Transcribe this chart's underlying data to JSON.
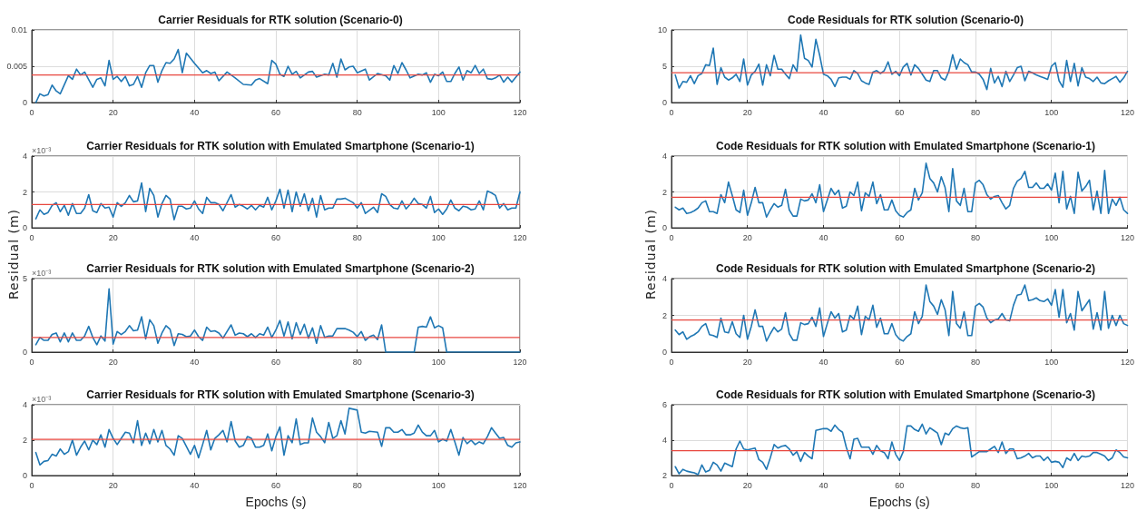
{
  "chart_data": [
    {
      "type": "line",
      "title": "Carrier Residuals for RTK solution (Scenario-0)",
      "xlim": [
        0,
        120
      ],
      "xticks": [
        0,
        20,
        40,
        60,
        80,
        100,
        120
      ],
      "ylim": [
        0,
        0.01
      ],
      "yticks": [
        0,
        0.005,
        0.01
      ],
      "grid": true,
      "marker": "none",
      "line_style": "solid",
      "ref_lines": [
        {
          "axis": "y",
          "value": 0.0038,
          "color": "#e8473f"
        }
      ],
      "series": [
        {
          "color": "#1f77b4",
          "x": [
            1,
            2,
            3,
            4,
            5,
            6,
            7,
            9,
            10,
            11,
            12,
            13,
            15,
            16,
            17,
            18,
            19,
            20,
            21,
            22,
            23,
            24,
            25,
            26,
            27,
            28,
            29,
            30,
            31,
            32,
            33,
            34,
            35,
            36,
            37,
            38,
            40,
            42,
            43,
            44,
            45,
            46,
            48,
            50,
            52,
            54,
            55,
            56,
            58,
            59,
            60,
            61,
            62,
            63,
            64,
            65,
            66,
            68,
            69,
            70,
            72,
            73,
            74,
            75,
            76,
            77,
            78,
            79,
            80,
            82,
            83,
            85,
            87,
            88,
            89,
            90,
            91,
            92,
            93,
            95,
            96,
            97,
            98,
            99,
            100,
            101,
            102,
            103,
            104,
            105,
            106,
            107,
            108,
            109,
            110,
            111,
            112,
            113,
            114,
            115,
            116,
            117,
            118,
            119,
            120
          ],
          "values": [
            0,
            0.0012,
            0.0009,
            0.0011,
            0.0024,
            0.0016,
            0.0012,
            0.0037,
            0.0032,
            0.0046,
            0.0038,
            0.0042,
            0.0021,
            0.0032,
            0.0034,
            0.0023,
            0.0058,
            0.0032,
            0.0036,
            0.0029,
            0.0036,
            0.0023,
            0.0025,
            0.0036,
            0.0021,
            0.0041,
            0.0051,
            0.0051,
            0.0028,
            0.0044,
            0.0055,
            0.0054,
            0.006,
            0.0073,
            0.0041,
            0.0068,
            0.0054,
            0.0041,
            0.0044,
            0.004,
            0.0042,
            0.003,
            0.0042,
            0.0034,
            0.0025,
            0.0024,
            0.0031,
            0.0033,
            0.0026,
            0.0058,
            0.0053,
            0.0039,
            0.0036,
            0.005,
            0.0039,
            0.0043,
            0.0034,
            0.0042,
            0.0043,
            0.0035,
            0.0039,
            0.0038,
            0.0054,
            0.0035,
            0.006,
            0.0045,
            0.0049,
            0.005,
            0.0041,
            0.0046,
            0.0031,
            0.004,
            0.0037,
            0.0031,
            0.0051,
            0.004,
            0.0055,
            0.0045,
            0.0034,
            0.0039,
            0.0038,
            0.0041,
            0.0028,
            0.0039,
            0.0037,
            0.0042,
            0.0029,
            0.0029,
            0.004,
            0.0049,
            0.0031,
            0.0044,
            0.0041,
            0.0051,
            0.004,
            0.0046,
            0.0033,
            0.0032,
            0.0034,
            0.0038,
            0.0028,
            0.0035,
            0.0028,
            0.0035,
            0.0042
          ]
        }
      ]
    },
    {
      "type": "line",
      "title": "Carrier Residuals for RTK solution with Emulated Smartphone (Scenario-1)",
      "ylabel": "Residual (m)",
      "annotations": [
        "×10⁻³"
      ],
      "xlim": [
        0,
        120
      ],
      "xticks": [
        0,
        20,
        40,
        60,
        80,
        100,
        120
      ],
      "ylim": [
        0,
        4
      ],
      "yticks": [
        0,
        2,
        4
      ],
      "grid": true,
      "marker": "none",
      "line_style": "solid",
      "ref_lines": [
        {
          "axis": "y",
          "value": 1.3,
          "color": "#e8473f"
        }
      ],
      "series": [
        {
          "color": "#1f77b4",
          "x": [
            1,
            2,
            3,
            4,
            5,
            6,
            7,
            8,
            9,
            10,
            11,
            12,
            13,
            14,
            15,
            16,
            17,
            18,
            19,
            20,
            21,
            22,
            23,
            24,
            25,
            26,
            27,
            28,
            29,
            30,
            31,
            32,
            33,
            34,
            35,
            36,
            37,
            38,
            39,
            40,
            41,
            42,
            43,
            44,
            45,
            46,
            47,
            49,
            50,
            51,
            52,
            53,
            54,
            55,
            56,
            57,
            58,
            59,
            60,
            61,
            62,
            63,
            64,
            65,
            66,
            67,
            68,
            69,
            70,
            71,
            72,
            73,
            74,
            75,
            76,
            77,
            79,
            80,
            81,
            82,
            84,
            85,
            86,
            87,
            88,
            89,
            90,
            91,
            92,
            93,
            94,
            95,
            96,
            97,
            98,
            99,
            100,
            101,
            102,
            103,
            104,
            105,
            106,
            107,
            108,
            109,
            110,
            111,
            112,
            113,
            114,
            115,
            116,
            117,
            118,
            119,
            120
          ],
          "values": [
            0.5,
            1.0,
            0.75,
            0.85,
            1.25,
            1.4,
            0.9,
            1.25,
            0.7,
            1.35,
            0.8,
            0.8,
            1.1,
            1.85,
            0.95,
            0.85,
            1.35,
            1.1,
            1.15,
            0.6,
            1.4,
            1.2,
            1.4,
            1.8,
            1.45,
            1.5,
            2.5,
            0.9,
            2.2,
            1.8,
            0.6,
            1.35,
            1.8,
            1.6,
            0.45,
            1.2,
            1.2,
            1.05,
            1.1,
            1.5,
            1.05,
            0.8,
            1.7,
            1.4,
            1.4,
            1.3,
            0.95,
            1.85,
            1.15,
            1.3,
            1.2,
            1.05,
            1.25,
            1.0,
            1.25,
            1.15,
            1.7,
            1.0,
            1.5,
            2.15,
            1.1,
            2.1,
            0.9,
            2.0,
            1.2,
            1.9,
            0.95,
            1.65,
            0.6,
            1.8,
            1.0,
            1.1,
            1.1,
            1.6,
            1.6,
            1.65,
            1.4,
            1.1,
            1.4,
            0.8,
            1.15,
            0.85,
            1.9,
            1.75,
            1.3,
            1.1,
            1.05,
            1.5,
            1.05,
            1.3,
            1.65,
            1.35,
            1.3,
            1.1,
            1.75,
            0.85,
            1.05,
            0.75,
            1.05,
            1.55,
            1.1,
            0.95,
            1.2,
            1.15,
            1.0,
            1.05,
            1.5,
            1.0,
            2.05,
            1.95,
            1.8,
            1.1,
            1.35,
            1.0,
            1.1,
            1.1,
            2.0
          ]
        }
      ]
    },
    {
      "type": "line",
      "title": "Carrier Residuals for RTK solution with Emulated Smartphone (Scenario-2)",
      "annotations": [
        "×10⁻³"
      ],
      "xlim": [
        0,
        120
      ],
      "xticks": [
        0,
        20,
        40,
        60,
        80,
        100,
        120
      ],
      "ylim": [
        0,
        5
      ],
      "yticks": [
        0,
        5
      ],
      "grid": true,
      "marker": "none",
      "line_style": "solid",
      "ref_lines": [
        {
          "axis": "y",
          "value": 1.0,
          "color": "#e8473f"
        }
      ],
      "series": [
        {
          "color": "#1f77b4",
          "x": [
            1,
            2,
            3,
            4,
            5,
            6,
            7,
            8,
            9,
            10,
            11,
            12,
            13,
            14,
            15,
            16,
            17,
            18,
            19,
            20,
            21,
            22,
            23,
            24,
            25,
            26,
            27,
            28,
            29,
            30,
            31,
            32,
            33,
            34,
            35,
            36,
            37,
            38,
            39,
            40,
            41,
            42,
            43,
            44,
            45,
            46,
            47,
            49,
            50,
            51,
            52,
            53,
            54,
            55,
            56,
            57,
            58,
            59,
            60,
            61,
            62,
            63,
            64,
            65,
            66,
            67,
            68,
            69,
            70,
            71,
            72,
            73,
            74,
            75,
            76,
            77,
            78,
            79,
            80,
            81,
            82,
            83,
            84,
            85,
            86,
            87,
            94,
            95,
            96,
            97,
            98,
            99,
            100,
            101,
            102,
            120
          ],
          "values": [
            0.5,
            1.0,
            0.8,
            0.8,
            1.2,
            1.3,
            0.7,
            1.3,
            0.7,
            1.3,
            0.8,
            0.8,
            1.1,
            1.75,
            1.0,
            0.5,
            1.1,
            0.75,
            4.3,
            0.55,
            1.4,
            1.2,
            1.4,
            1.8,
            1.45,
            1.5,
            2.4,
            0.9,
            2.2,
            1.8,
            0.6,
            1.3,
            1.8,
            1.55,
            0.45,
            1.25,
            1.2,
            1.05,
            1.1,
            1.5,
            1.05,
            0.8,
            1.7,
            1.4,
            1.45,
            1.3,
            0.95,
            1.85,
            1.15,
            1.3,
            1.25,
            1.05,
            1.25,
            1.0,
            1.25,
            1.15,
            1.7,
            1.0,
            1.5,
            2.15,
            1.1,
            2.05,
            0.9,
            2.0,
            1.2,
            1.9,
            0.95,
            1.65,
            0.6,
            1.8,
            1.0,
            1.1,
            1.1,
            1.6,
            1.6,
            1.6,
            1.5,
            1.35,
            1.05,
            1.4,
            0.8,
            1.05,
            1.15,
            0.85,
            1.85,
            0,
            0,
            1.7,
            1.75,
            1.7,
            2.4,
            1.65,
            1.8,
            1.65,
            0,
            0
          ]
        }
      ]
    },
    {
      "type": "line",
      "title": "Carrier Residuals for RTK solution with Emulated Smartphone (Scenario-3)",
      "xlabel": "Epochs (s)",
      "annotations": [
        "×10⁻³"
      ],
      "xlim": [
        0,
        120
      ],
      "xticks": [
        0,
        20,
        40,
        60,
        80,
        100,
        120
      ],
      "ylim": [
        0,
        4
      ],
      "yticks": [
        0,
        2,
        4
      ],
      "grid": true,
      "marker": "none",
      "line_style": "solid",
      "ref_lines": [
        {
          "axis": "y",
          "value": 2.05,
          "color": "#e8473f"
        }
      ],
      "series": [
        {
          "color": "#1f77b4",
          "x": [
            1,
            2,
            3,
            4,
            5,
            6,
            7,
            8,
            9,
            10,
            11,
            12,
            13,
            14,
            15,
            16,
            17,
            18,
            19,
            20,
            21,
            22,
            23,
            24,
            25,
            26,
            27,
            28,
            29,
            30,
            31,
            32,
            33,
            34,
            35,
            36,
            37,
            38,
            39,
            40,
            41,
            42,
            43,
            44,
            45,
            46,
            47,
            48,
            49,
            50,
            51,
            52,
            53,
            54,
            55,
            56,
            57,
            58,
            59,
            60,
            61,
            62,
            63,
            64,
            65,
            66,
            67,
            68,
            69,
            70,
            71,
            72,
            73,
            74,
            75,
            76,
            77,
            78,
            79,
            80,
            81,
            82,
            83,
            85,
            86,
            87,
            88,
            89,
            90,
            91,
            92,
            93,
            94,
            95,
            96,
            97,
            98,
            99,
            100,
            101,
            102,
            103,
            104,
            105,
            106,
            107,
            108,
            109,
            110,
            111,
            112,
            113,
            114,
            115,
            116,
            117,
            118,
            119,
            120
          ],
          "values": [
            1.3,
            0.6,
            0.8,
            0.85,
            1.2,
            1.1,
            1.5,
            1.2,
            1.35,
            2.0,
            1.15,
            1.6,
            1.95,
            1.45,
            2.0,
            1.75,
            2.3,
            1.6,
            2.6,
            2.1,
            1.75,
            2.1,
            2.45,
            2.4,
            1.85,
            3.1,
            1.7,
            2.4,
            1.8,
            2.6,
            1.9,
            2.55,
            1.7,
            1.5,
            1.15,
            2.25,
            2.1,
            1.65,
            1.2,
            1.7,
            1.0,
            1.75,
            2.55,
            1.45,
            2.1,
            2.3,
            2.55,
            1.9,
            3.05,
            1.95,
            1.6,
            1.7,
            2.2,
            2.1,
            1.6,
            1.6,
            1.7,
            2.35,
            1.4,
            2.2,
            2.75,
            1.15,
            2.25,
            1.85,
            3.2,
            1.75,
            1.85,
            1.85,
            3.25,
            2.45,
            2.2,
            1.85,
            3.0,
            2.1,
            2.25,
            3.1,
            2.35,
            3.8,
            3.75,
            3.7,
            2.45,
            2.4,
            2.5,
            2.45,
            1.65,
            2.7,
            2.7,
            2.45,
            2.45,
            2.6,
            2.3,
            2.3,
            2.4,
            2.85,
            2.45,
            2.25,
            2.25,
            2.55,
            1.9,
            2.05,
            1.95,
            2.6,
            1.9,
            1.15,
            2.15,
            1.8,
            2.0,
            1.75,
            1.9,
            1.8,
            2.2,
            2.7,
            2.4,
            2.1,
            2.15,
            1.7,
            1.6,
            1.85,
            1.9
          ]
        }
      ]
    },
    {
      "type": "line",
      "title": "Code Residuals for RTK solution (Scenario-0)",
      "xlim": [
        0,
        120
      ],
      "xticks": [
        0,
        20,
        40,
        60,
        80,
        100,
        120
      ],
      "ylim": [
        0,
        10
      ],
      "yticks": [
        0,
        5,
        10
      ],
      "grid": true,
      "marker": "none",
      "line_style": "solid",
      "ref_lines": [
        {
          "axis": "y",
          "value": 4.1,
          "color": "#e8473f"
        }
      ],
      "series": [
        {
          "color": "#1f77b4",
          "x": [
            1,
            2,
            3,
            4,
            5,
            6,
            7,
            8,
            9,
            10,
            11,
            12,
            13,
            14,
            15,
            16,
            17,
            18,
            19,
            20,
            21,
            22,
            23,
            24,
            25,
            26,
            27,
            28,
            29,
            30,
            31,
            32,
            33,
            34,
            35,
            36,
            37,
            38,
            39,
            40,
            41,
            42,
            43,
            44,
            45,
            46,
            47,
            48,
            49,
            50,
            51,
            52,
            53,
            54,
            55,
            56,
            57,
            58,
            59,
            60,
            61,
            62,
            63,
            64,
            65,
            66,
            67,
            68,
            69,
            70,
            71,
            72,
            73,
            74,
            75,
            76,
            77,
            78,
            79,
            80,
            81,
            82,
            83,
            84,
            85,
            86,
            87,
            88,
            89,
            90,
            91,
            92,
            93,
            94,
            95,
            96,
            97,
            98,
            99,
            100,
            101,
            102,
            103,
            104,
            105,
            106,
            107,
            108,
            109,
            110,
            111,
            112,
            113,
            114,
            115,
            116,
            117,
            118,
            119,
            120
          ],
          "values": [
            3.8,
            2.0,
            2.9,
            2.8,
            3.7,
            2.6,
            3.7,
            4.0,
            5.2,
            5.1,
            7.5,
            2.5,
            4.8,
            3.5,
            3.1,
            3.4,
            3.9,
            2.9,
            6.0,
            2.4,
            3.8,
            4.3,
            5.3,
            2.4,
            5.2,
            3.7,
            6.5,
            4.6,
            4.6,
            3.9,
            3.3,
            5.2,
            4.3,
            9.3,
            6.1,
            5.8,
            4.9,
            8.7,
            6.5,
            3.9,
            3.7,
            3.2,
            2.2,
            3.4,
            3.5,
            3.5,
            3.2,
            4.4,
            4.0,
            3.0,
            2.7,
            2.5,
            4.2,
            4.4,
            4.0,
            4.4,
            5.6,
            3.9,
            4.3,
            3.7,
            4.9,
            5.4,
            3.8,
            5.2,
            4.7,
            3.9,
            3.1,
            2.9,
            4.4,
            4.4,
            3.4,
            3.1,
            4.3,
            6.6,
            4.6,
            6.0,
            5.5,
            5.2,
            4.2,
            4.2,
            3.9,
            3.2,
            1.8,
            4.7,
            2.7,
            3.6,
            2.2,
            4.3,
            2.9,
            3.8,
            4.8,
            5.0,
            3.0,
            4.3,
            4.1,
            3.8,
            3.6,
            3.4,
            3.2,
            5.0,
            5.5,
            3.0,
            2.1,
            5.8,
            2.9,
            5.4,
            2.3,
            4.8,
            3.5,
            3.3,
            2.9,
            3.5,
            2.7,
            2.6,
            3.0,
            3.3,
            3.6,
            2.8,
            3.4,
            4.3
          ]
        }
      ]
    },
    {
      "type": "line",
      "title": "Code Residuals for RTK solution with Emulated Smartphone (Scenario-1)",
      "ylabel": "Residual (m)",
      "xlim": [
        0,
        120
      ],
      "xticks": [
        0,
        20,
        40,
        60,
        80,
        100,
        120
      ],
      "ylim": [
        0,
        4
      ],
      "yticks": [
        0,
        2,
        4
      ],
      "grid": true,
      "marker": "none",
      "line_style": "solid",
      "ref_lines": [
        {
          "axis": "y",
          "value": 1.7,
          "color": "#e8473f"
        }
      ],
      "series": [
        {
          "color": "#1f77b4",
          "x": [
            1,
            2,
            3,
            4,
            5,
            6,
            7,
            8,
            9,
            10,
            11,
            12,
            13,
            14,
            15,
            16,
            17,
            18,
            19,
            20,
            21,
            22,
            23,
            24,
            25,
            26,
            27,
            28,
            29,
            30,
            31,
            32,
            33,
            34,
            35,
            36,
            37,
            38,
            39,
            40,
            41,
            42,
            43,
            44,
            45,
            46,
            47,
            48,
            49,
            50,
            51,
            52,
            53,
            54,
            55,
            56,
            57,
            58,
            59,
            60,
            61,
            62,
            63,
            64,
            65,
            66,
            67,
            68,
            69,
            70,
            71,
            72,
            73,
            74,
            75,
            76,
            77,
            78,
            79,
            80,
            81,
            82,
            83,
            84,
            85,
            86,
            87,
            88,
            89,
            90,
            91,
            92,
            93,
            94,
            95,
            96,
            97,
            98,
            99,
            100,
            101,
            102,
            103,
            104,
            105,
            106,
            107,
            108,
            109,
            110,
            111,
            112,
            113,
            114,
            115,
            116,
            117,
            118,
            119,
            120
          ],
          "values": [
            1.15,
            1.0,
            1.1,
            0.8,
            0.85,
            0.95,
            1.1,
            1.4,
            1.5,
            0.9,
            0.9,
            0.8,
            1.85,
            1.4,
            2.55,
            1.8,
            1.0,
            0.85,
            2.1,
            0.7,
            1.4,
            2.25,
            1.4,
            1.4,
            0.6,
            1.0,
            1.35,
            1.15,
            1.25,
            2.15,
            1.0,
            0.65,
            0.65,
            1.6,
            1.5,
            1.55,
            1.9,
            1.4,
            2.4,
            0.9,
            1.55,
            2.2,
            1.85,
            2.1,
            1.1,
            1.2,
            2.0,
            1.8,
            2.55,
            0.95,
            1.95,
            1.75,
            2.55,
            1.35,
            1.85,
            1.0,
            1.0,
            1.55,
            0.95,
            0.7,
            0.6,
            0.85,
            1.0,
            2.2,
            1.55,
            1.95,
            3.6,
            2.75,
            2.5,
            2.0,
            2.85,
            2.25,
            0.9,
            3.3,
            1.5,
            1.25,
            2.2,
            0.9,
            0.9,
            2.5,
            2.65,
            2.4,
            1.85,
            1.6,
            1.75,
            1.8,
            1.4,
            1.05,
            1.25,
            2.2,
            2.6,
            2.75,
            3.15,
            2.25,
            2.25,
            2.5,
            2.2,
            2.2,
            2.45,
            2.1,
            3.05,
            1.4,
            3.15,
            1.05,
            1.75,
            0.8,
            3.1,
            2.05,
            2.3,
            2.65,
            1.0,
            2.05,
            0.8,
            3.2,
            0.8,
            1.6,
            1.25,
            1.7,
            1.0,
            0.8
          ]
        }
      ]
    },
    {
      "type": "line",
      "title": "Code Residuals for RTK solution with Emulated Smartphone (Scenario-2)",
      "xlim": [
        0,
        120
      ],
      "xticks": [
        0,
        20,
        40,
        60,
        80,
        100,
        120
      ],
      "ylim": [
        0,
        4
      ],
      "yticks": [
        0,
        2,
        4
      ],
      "grid": true,
      "marker": "none",
      "line_style": "solid",
      "ref_lines": [
        {
          "axis": "y",
          "value": 1.75,
          "color": "#e8473f"
        }
      ],
      "series": [
        {
          "color": "#1f77b4",
          "x": [
            1,
            2,
            3,
            4,
            5,
            6,
            7,
            8,
            9,
            10,
            11,
            12,
            13,
            14,
            15,
            16,
            17,
            18,
            19,
            20,
            21,
            22,
            23,
            24,
            25,
            26,
            27,
            28,
            29,
            30,
            31,
            32,
            33,
            34,
            35,
            36,
            37,
            38,
            39,
            40,
            41,
            42,
            43,
            44,
            45,
            46,
            47,
            48,
            49,
            50,
            51,
            52,
            53,
            54,
            55,
            56,
            57,
            58,
            59,
            60,
            61,
            62,
            63,
            64,
            65,
            66,
            67,
            68,
            69,
            70,
            71,
            72,
            73,
            74,
            75,
            76,
            77,
            78,
            79,
            80,
            81,
            82,
            83,
            84,
            85,
            86,
            87,
            88,
            89,
            90,
            91,
            92,
            93,
            94,
            95,
            96,
            97,
            98,
            99,
            100,
            101,
            102,
            103,
            104,
            105,
            106,
            107,
            108,
            110,
            111,
            112,
            113,
            114,
            115,
            116,
            117,
            118,
            119,
            120
          ],
          "values": [
            1.2,
            0.95,
            1.1,
            0.7,
            0.85,
            0.95,
            1.1,
            1.4,
            1.55,
            0.95,
            0.9,
            0.8,
            1.85,
            1.1,
            1.05,
            1.65,
            1.0,
            0.8,
            2.0,
            0.7,
            1.4,
            2.3,
            1.4,
            1.4,
            0.6,
            1.0,
            1.35,
            1.1,
            1.25,
            2.15,
            1.0,
            0.65,
            0.65,
            1.6,
            1.5,
            1.55,
            1.9,
            1.4,
            2.4,
            0.85,
            1.55,
            2.2,
            1.85,
            2.1,
            1.1,
            1.2,
            2.0,
            1.8,
            2.5,
            0.95,
            1.95,
            1.75,
            2.55,
            1.35,
            1.85,
            1.0,
            1.0,
            1.55,
            0.95,
            0.7,
            0.6,
            0.85,
            1.0,
            2.2,
            1.55,
            1.95,
            3.65,
            2.75,
            2.5,
            2.05,
            2.85,
            2.3,
            0.9,
            3.3,
            1.55,
            1.3,
            2.2,
            0.9,
            0.9,
            2.5,
            2.65,
            2.45,
            1.85,
            1.6,
            1.75,
            1.8,
            2.1,
            1.75,
            1.7,
            2.55,
            3.1,
            3.15,
            3.65,
            2.8,
            2.85,
            2.95,
            2.8,
            2.75,
            2.9,
            2.55,
            3.4,
            1.9,
            3.4,
            1.6,
            2.1,
            1.2,
            3.3,
            2.25,
            2.85,
            1.25,
            2.15,
            1.2,
            3.3,
            1.3,
            2.0,
            1.45,
            2.0,
            1.55,
            1.45
          ]
        }
      ]
    },
    {
      "type": "line",
      "title": "Code Residuals for RTK solution with Emulated Smartphone (Scenario-3)",
      "xlabel": "Epochs (s)",
      "xlim": [
        0,
        120
      ],
      "xticks": [
        0,
        20,
        40,
        60,
        80,
        100,
        120
      ],
      "ylim": [
        2,
        6
      ],
      "yticks": [
        2,
        4,
        6
      ],
      "grid": true,
      "marker": "none",
      "line_style": "solid",
      "ref_lines": [
        {
          "axis": "y",
          "value": 3.4,
          "color": "#e8473f"
        }
      ],
      "series": [
        {
          "color": "#1f77b4",
          "x": [
            1,
            2,
            3,
            4,
            6,
            7,
            8,
            9,
            10,
            11,
            12,
            13,
            14,
            15,
            16,
            17,
            18,
            19,
            20,
            21,
            22,
            23,
            24,
            25,
            26,
            27,
            28,
            29,
            30,
            31,
            32,
            33,
            34,
            35,
            36,
            37,
            38,
            39,
            40,
            41,
            42,
            43,
            44,
            45,
            46,
            47,
            48,
            49,
            50,
            51,
            52,
            53,
            54,
            55,
            56,
            57,
            58,
            59,
            60,
            61,
            62,
            63,
            64,
            65,
            66,
            67,
            68,
            69,
            70,
            71,
            72,
            73,
            74,
            75,
            76,
            77,
            78,
            79,
            80,
            81,
            83,
            84,
            85,
            86,
            87,
            88,
            89,
            90,
            91,
            92,
            93,
            94,
            95,
            96,
            97,
            98,
            99,
            100,
            101,
            102,
            103,
            104,
            105,
            106,
            107,
            108,
            109,
            110,
            111,
            112,
            113,
            114,
            115,
            116,
            117,
            118,
            119,
            120
          ],
          "values": [
            2.5,
            2.1,
            2.35,
            2.25,
            2.15,
            2.05,
            2.6,
            2.2,
            2.3,
            2.75,
            2.6,
            2.25,
            2.7,
            2.6,
            2.5,
            3.5,
            3.95,
            3.5,
            3.45,
            3.5,
            3.55,
            2.9,
            2.75,
            2.35,
            3.0,
            3.75,
            3.55,
            3.65,
            3.7,
            3.5,
            3.15,
            3.35,
            2.8,
            3.3,
            3.1,
            2.95,
            4.55,
            4.6,
            4.65,
            4.65,
            4.5,
            4.85,
            4.6,
            4.45,
            3.6,
            2.95,
            4.05,
            4.1,
            3.6,
            3.6,
            3.6,
            3.2,
            3.7,
            3.4,
            3.3,
            2.95,
            3.9,
            3.2,
            2.85,
            3.35,
            4.8,
            4.8,
            4.6,
            4.5,
            4.9,
            4.35,
            4.7,
            4.55,
            4.4,
            3.75,
            4.4,
            4.3,
            4.65,
            4.8,
            4.7,
            4.65,
            4.7,
            3.05,
            3.2,
            3.35,
            3.35,
            3.5,
            3.65,
            3.3,
            3.9,
            3.25,
            3.5,
            3.5,
            2.95,
            3.0,
            3.1,
            3.25,
            3.0,
            3.1,
            3.1,
            2.85,
            3.05,
            2.75,
            2.8,
            2.75,
            2.45,
            3.0,
            2.85,
            3.25,
            2.85,
            3.1,
            3.05,
            3.1,
            3.3,
            3.3,
            3.2,
            3.1,
            2.85,
            3.0,
            3.45,
            3.3,
            3.05,
            3.0
          ]
        }
      ]
    }
  ]
}
